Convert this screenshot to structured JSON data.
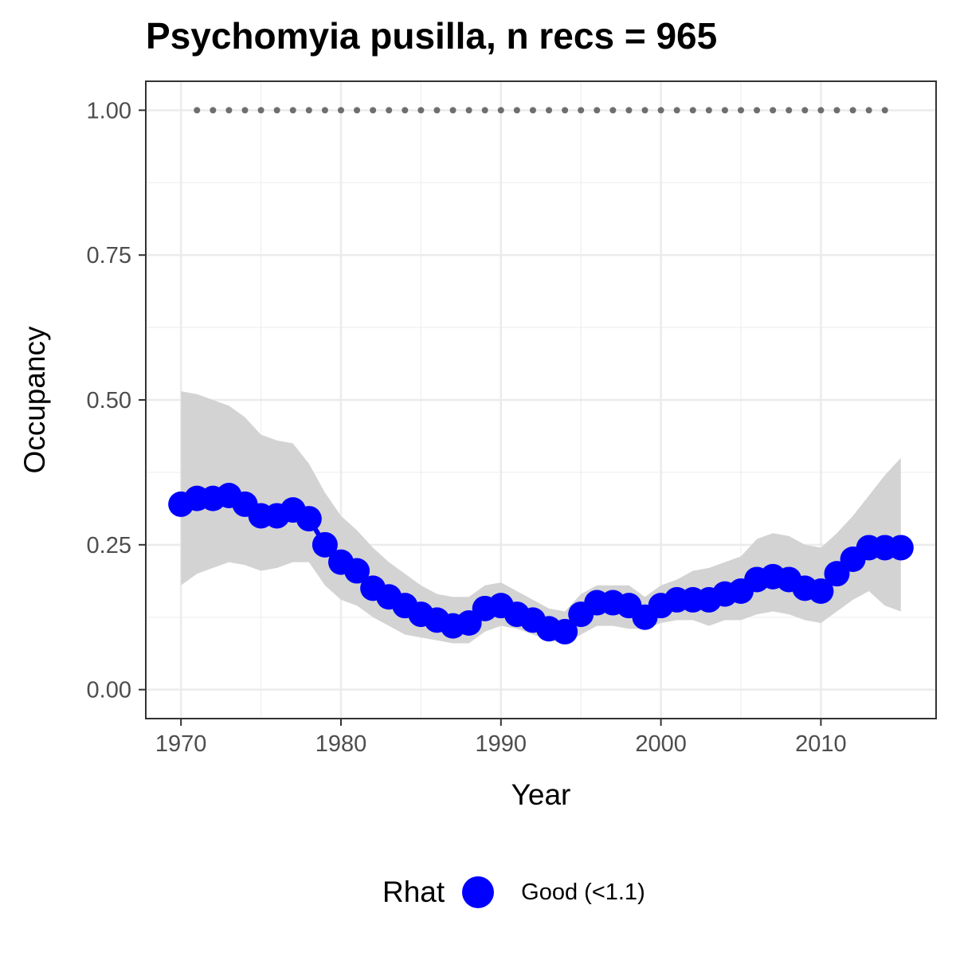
{
  "chart_data": {
    "type": "line",
    "title": "Psychomyia pusilla, n recs = 965",
    "xlabel": "Year",
    "ylabel": "Occupancy",
    "xlim": [
      1967.8,
      2017.2
    ],
    "ylim": [
      -0.05,
      1.05
    ],
    "x_ticks": [
      1970,
      1980,
      1990,
      2000,
      2010
    ],
    "y_ticks": [
      0.0,
      0.25,
      0.5,
      0.75,
      1.0
    ],
    "y_tick_labels": [
      "0.00",
      "0.25",
      "0.50",
      "0.75",
      "1.00"
    ],
    "grid": true,
    "legend": {
      "title": "Rhat",
      "position": "bottom",
      "entries": [
        {
          "label": "Good (<1.1)",
          "color": "#0000ff"
        }
      ]
    },
    "colors": {
      "points": "#0000ff",
      "ribbon": "#d3d3d3",
      "reference": "#6e6e6e"
    },
    "series": [
      {
        "name": "Good (<1.1)",
        "x": [
          1970,
          1971,
          1972,
          1973,
          1974,
          1975,
          1976,
          1977,
          1978,
          1979,
          1980,
          1981,
          1982,
          1983,
          1984,
          1985,
          1986,
          1987,
          1988,
          1989,
          1990,
          1991,
          1992,
          1993,
          1994,
          1995,
          1996,
          1997,
          1998,
          1999,
          2000,
          2001,
          2002,
          2003,
          2004,
          2005,
          2006,
          2007,
          2008,
          2009,
          2010,
          2011,
          2012,
          2013,
          2014,
          2015
        ],
        "y": [
          0.32,
          0.33,
          0.33,
          0.335,
          0.32,
          0.3,
          0.3,
          0.31,
          0.295,
          0.25,
          0.22,
          0.205,
          0.175,
          0.16,
          0.145,
          0.13,
          0.12,
          0.11,
          0.115,
          0.14,
          0.145,
          0.13,
          0.12,
          0.105,
          0.1,
          0.13,
          0.15,
          0.15,
          0.145,
          0.125,
          0.145,
          0.155,
          0.155,
          0.155,
          0.165,
          0.17,
          0.19,
          0.195,
          0.19,
          0.175,
          0.17,
          0.2,
          0.225,
          0.245,
          0.245,
          0.245
        ],
        "lower": [
          0.18,
          0.2,
          0.21,
          0.22,
          0.215,
          0.205,
          0.21,
          0.22,
          0.22,
          0.18,
          0.155,
          0.145,
          0.125,
          0.11,
          0.095,
          0.09,
          0.085,
          0.08,
          0.08,
          0.1,
          0.11,
          0.105,
          0.095,
          0.085,
          0.08,
          0.095,
          0.11,
          0.11,
          0.105,
          0.105,
          0.115,
          0.12,
          0.12,
          0.11,
          0.12,
          0.12,
          0.13,
          0.135,
          0.13,
          0.12,
          0.115,
          0.135,
          0.155,
          0.17,
          0.145,
          0.135
        ],
        "upper": [
          0.515,
          0.51,
          0.5,
          0.49,
          0.47,
          0.44,
          0.43,
          0.425,
          0.39,
          0.34,
          0.3,
          0.275,
          0.245,
          0.22,
          0.2,
          0.18,
          0.165,
          0.16,
          0.16,
          0.18,
          0.185,
          0.17,
          0.155,
          0.14,
          0.135,
          0.165,
          0.18,
          0.18,
          0.18,
          0.16,
          0.18,
          0.19,
          0.205,
          0.21,
          0.22,
          0.23,
          0.26,
          0.27,
          0.265,
          0.25,
          0.245,
          0.27,
          0.3,
          0.335,
          0.37,
          0.4
        ]
      },
      {
        "name": "",
        "style": "dotted",
        "x": [
          1971,
          2014
        ],
        "y": [
          1.0,
          1.0
        ]
      }
    ]
  }
}
